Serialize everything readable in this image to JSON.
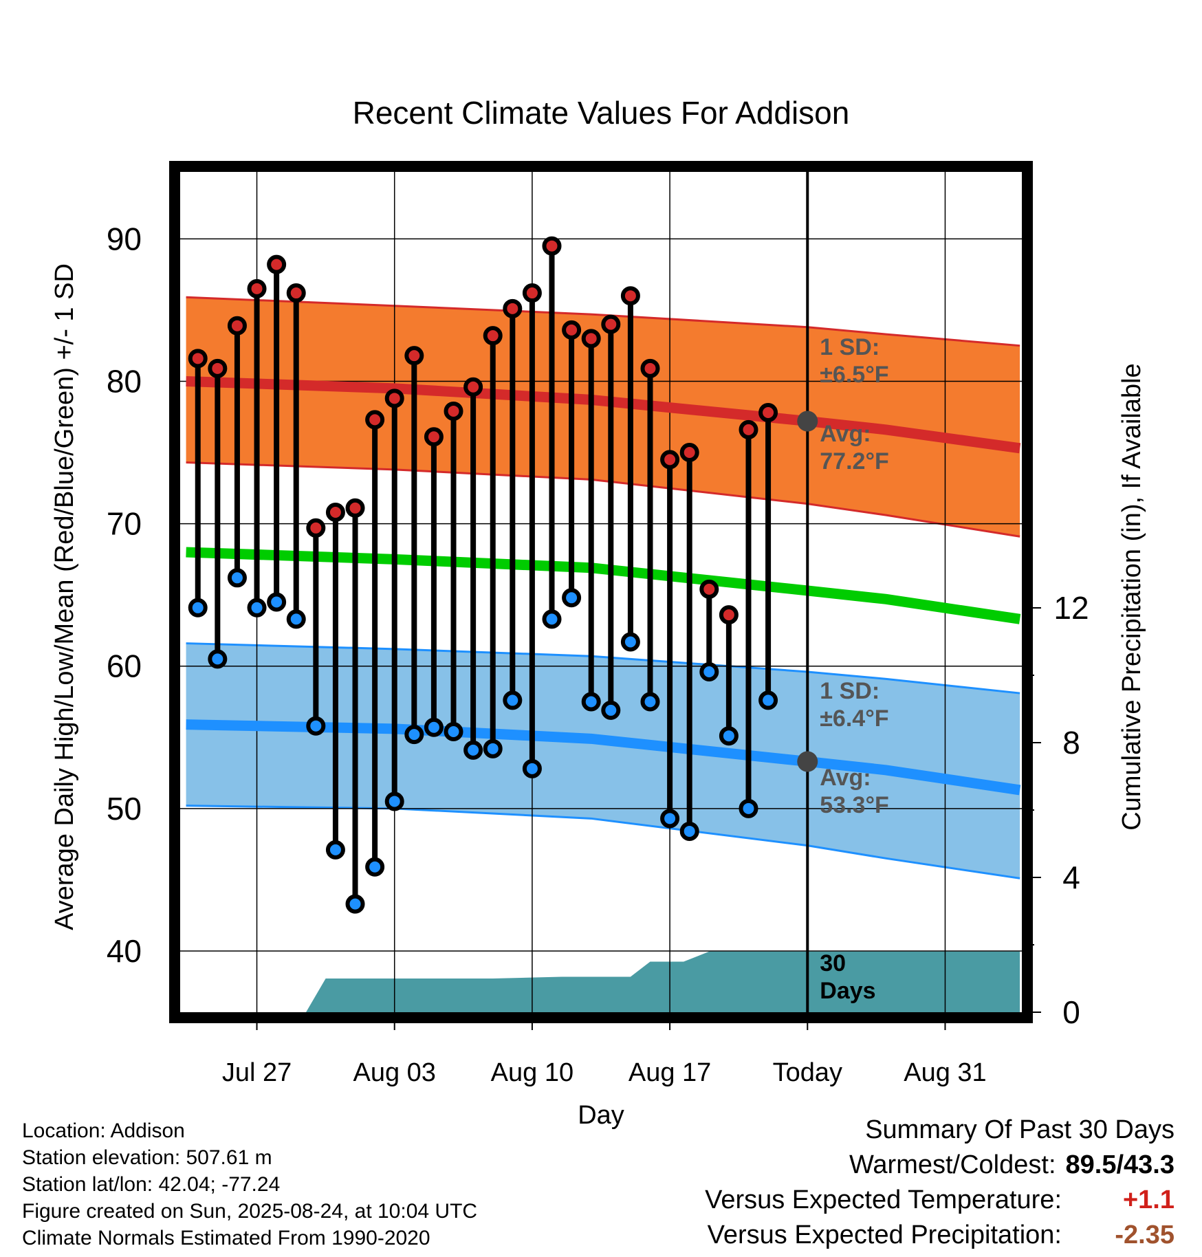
{
  "chart_data": {
    "type": "line",
    "title": "Recent Climate Values For Addison",
    "xlabel": "Day",
    "ylabel": "Average Daily High/Low/Mean (Red/Blue/Green) +/- 1 SD",
    "y2label": "Cumulative Precipitation (in), If Available",
    "x_tick_labels": [
      "Jul 27",
      "Aug 03",
      "Aug 10",
      "Aug 17",
      "Today",
      "Aug 31"
    ],
    "x_tick_days": [
      3,
      10,
      17,
      24,
      31,
      38
    ],
    "x_range": [
      -0.9,
      41.9
    ],
    "ylim": [
      35.7,
      94.7
    ],
    "y_ticks": [
      40,
      50,
      60,
      70,
      80,
      90
    ],
    "y2lim": [
      0,
      12
    ],
    "y2_ticks": [
      0,
      4,
      8,
      12
    ],
    "grid": true,
    "today_day": 31,
    "days": [
      0,
      1,
      2,
      3,
      4,
      5,
      6,
      7,
      8,
      9,
      10,
      11,
      12,
      13,
      14,
      15,
      16,
      17,
      18,
      19,
      20,
      21,
      22,
      23,
      24,
      25,
      26,
      27,
      28,
      29,
      30
    ],
    "series": [
      {
        "name": "High",
        "color": "#d42a2a",
        "values": [
          81.6,
          80.9,
          83.9,
          86.5,
          88.2,
          86.2,
          69.7,
          70.8,
          71.1,
          77.3,
          78.8,
          81.8,
          76.1,
          77.9,
          79.6,
          83.2,
          85.1,
          86.2,
          89.5,
          83.6,
          83.0,
          84.0,
          86.0,
          80.9,
          74.5,
          75.0,
          65.4,
          63.6,
          76.6,
          77.8,
          null
        ]
      },
      {
        "name": "Low",
        "color": "#1e90ff",
        "values": [
          64.1,
          60.5,
          66.2,
          64.1,
          64.5,
          63.3,
          55.8,
          47.1,
          43.3,
          45.9,
          50.5,
          55.2,
          55.7,
          55.4,
          54.1,
          54.2,
          57.6,
          52.8,
          63.3,
          64.8,
          57.5,
          56.9,
          61.7,
          57.5,
          49.3,
          48.4,
          59.6,
          55.1,
          50.0,
          57.6,
          null
        ]
      }
    ],
    "normals": {
      "days": [
        -0.6,
        10,
        20,
        31,
        35,
        41.8
      ],
      "high_avg": [
        80.0,
        79.5,
        78.7,
        77.2,
        76.6,
        75.3
      ],
      "high_sd_upper": [
        85.9,
        85.3,
        84.7,
        83.8,
        83.3,
        82.5
      ],
      "high_sd_lower": [
        74.3,
        73.8,
        73.1,
        71.4,
        70.6,
        69.1
      ],
      "mean_avg": [
        68.0,
        67.5,
        66.9,
        65.3,
        64.7,
        63.3
      ],
      "low_avg": [
        55.9,
        55.6,
        54.9,
        53.3,
        52.7,
        51.3
      ],
      "low_sd_upper": [
        61.6,
        61.2,
        60.7,
        59.6,
        59.1,
        58.1
      ],
      "low_sd_lower": [
        50.2,
        50.0,
        49.3,
        47.4,
        46.5,
        45.1
      ]
    },
    "precip": {
      "days": [
        5.5,
        6.5,
        15,
        18.5,
        22,
        23,
        24.7,
        26,
        27,
        41.8
      ],
      "values": [
        0,
        1.0,
        1.0,
        1.05,
        1.05,
        1.5,
        1.5,
        1.8,
        1.8,
        1.8
      ],
      "color": "#4a9ba3"
    },
    "annotations": {
      "high_sd_label": [
        "1 SD:",
        "±6.5°F"
      ],
      "high_avg_label": [
        "Avg:",
        "77.2°F"
      ],
      "low_sd_label": [
        "1 SD:",
        "±6.4°F"
      ],
      "low_avg_label": [
        "Avg:",
        "53.3°F"
      ],
      "precip_label": [
        "30",
        "Days"
      ]
    },
    "colors": {
      "high_band": "#f47b2e",
      "high_line": "#d42a2a",
      "mean_line": "#00cc00",
      "low_band": "#87c1e8",
      "low_line": "#1e90ff",
      "marker_today": "#444444",
      "annotation_text": "#555555"
    }
  },
  "info": {
    "location": "Location: Addison",
    "elevation": "Station elevation: 507.61 m",
    "latlon": "Station lat/lon: 42.04; -77.24",
    "created": "Figure created on Sun, 2025-08-24, at 10:04 UTC",
    "normals": "Climate Normals Estimated From 1990-2020"
  },
  "summary": {
    "title": "Summary Of Past 30 Days",
    "warm_cold_label": "Warmest/Coldest:",
    "warm_cold_value": "89.5/43.3",
    "temp_label": "Versus Expected Temperature:",
    "temp_value": "+1.1",
    "precip_label": "Versus Expected Precipitation:",
    "precip_value": "-2.35"
  }
}
